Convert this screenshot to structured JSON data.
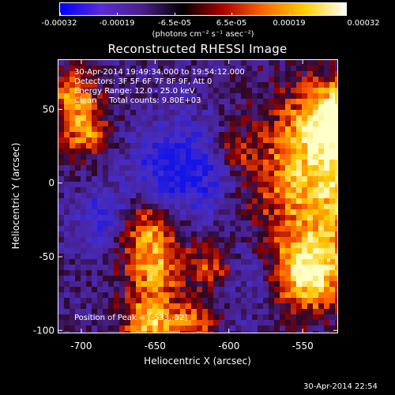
{
  "colorbar": {
    "labels": [
      "-0.00032",
      "-0.00019",
      "-6.5e-05",
      "6.5e-05",
      "0.00019",
      "0.00032"
    ],
    "unit": "(photons cm⁻² s⁻¹ asec⁻²)",
    "colors": [
      "#0000ff",
      "#5a2bd8",
      "#4a1f8a",
      "#000000",
      "#b00000",
      "#ff6a00",
      "#ffd000",
      "#ffffff"
    ]
  },
  "chart_data": {
    "type": "heatmap",
    "title": "Reconstructed RHESSI Image",
    "xlabel": "Heliocentric X (arcsec)",
    "ylabel": "Heliocentric Y (arcsec)",
    "xlim": [
      -716,
      -526
    ],
    "ylim": [
      -102,
      84
    ],
    "xticks": [
      -700,
      -650,
      -600,
      -550
    ],
    "yticks": [
      -100,
      -50,
      0,
      50
    ],
    "peak": [
      -533,
      -52
    ],
    "info": {
      "line1": "30-Apr-2014 19:49:34.000 to 19:54:12.000",
      "line2": "Detectors: 3F 5F 6F 7F 8F 9F, Att 0",
      "line3": "Energy Range: 12.0 - 25.0 keV",
      "line4": "Clean     Total counts: 9.80E+03",
      "peak_text": "Position of Peak = [-533,-52]"
    }
  },
  "footer": {
    "timestamp": "30-Apr-2014 22:54"
  }
}
